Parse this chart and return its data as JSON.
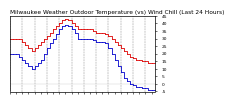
{
  "title": "Milwaukee Weather Outdoor Temperature (vs) Wind Chill (Last 24 Hours)",
  "temp_color": "#dd0000",
  "windchill_color": "#0000cc",
  "bg_color": "#ffffff",
  "grid_color": "#888888",
  "ylim": [
    -5,
    45
  ],
  "ytick_values": [
    45,
    40,
    35,
    30,
    25,
    20,
    15,
    10,
    5,
    0,
    -5
  ],
  "ytick_labels": [
    "45",
    "40",
    "35",
    "30",
    "25",
    "20",
    "15",
    "10",
    "5",
    "0",
    "-5"
  ],
  "temp_data": [
    30,
    30,
    30,
    30,
    28,
    26,
    24,
    22,
    24,
    26,
    28,
    30,
    32,
    34,
    36,
    38,
    40,
    42,
    43,
    42,
    40,
    38,
    36,
    36,
    36,
    36,
    36,
    35,
    34,
    34,
    34,
    33,
    32,
    30,
    28,
    26,
    24,
    22,
    20,
    18,
    17,
    16,
    16,
    15,
    15,
    14,
    14,
    14
  ],
  "wc_data": [
    20,
    20,
    20,
    18,
    16,
    14,
    12,
    10,
    12,
    14,
    16,
    20,
    24,
    27,
    30,
    33,
    36,
    38,
    39,
    38,
    36,
    34,
    30,
    30,
    30,
    30,
    30,
    29,
    28,
    28,
    28,
    27,
    24,
    20,
    16,
    12,
    8,
    4,
    2,
    0,
    -1,
    -2,
    -2,
    -3,
    -3,
    -4,
    -4,
    -4
  ],
  "n_points": 48,
  "title_fontsize": 4.2,
  "tick_fontsize": 3.2,
  "marker_size": 1.0
}
